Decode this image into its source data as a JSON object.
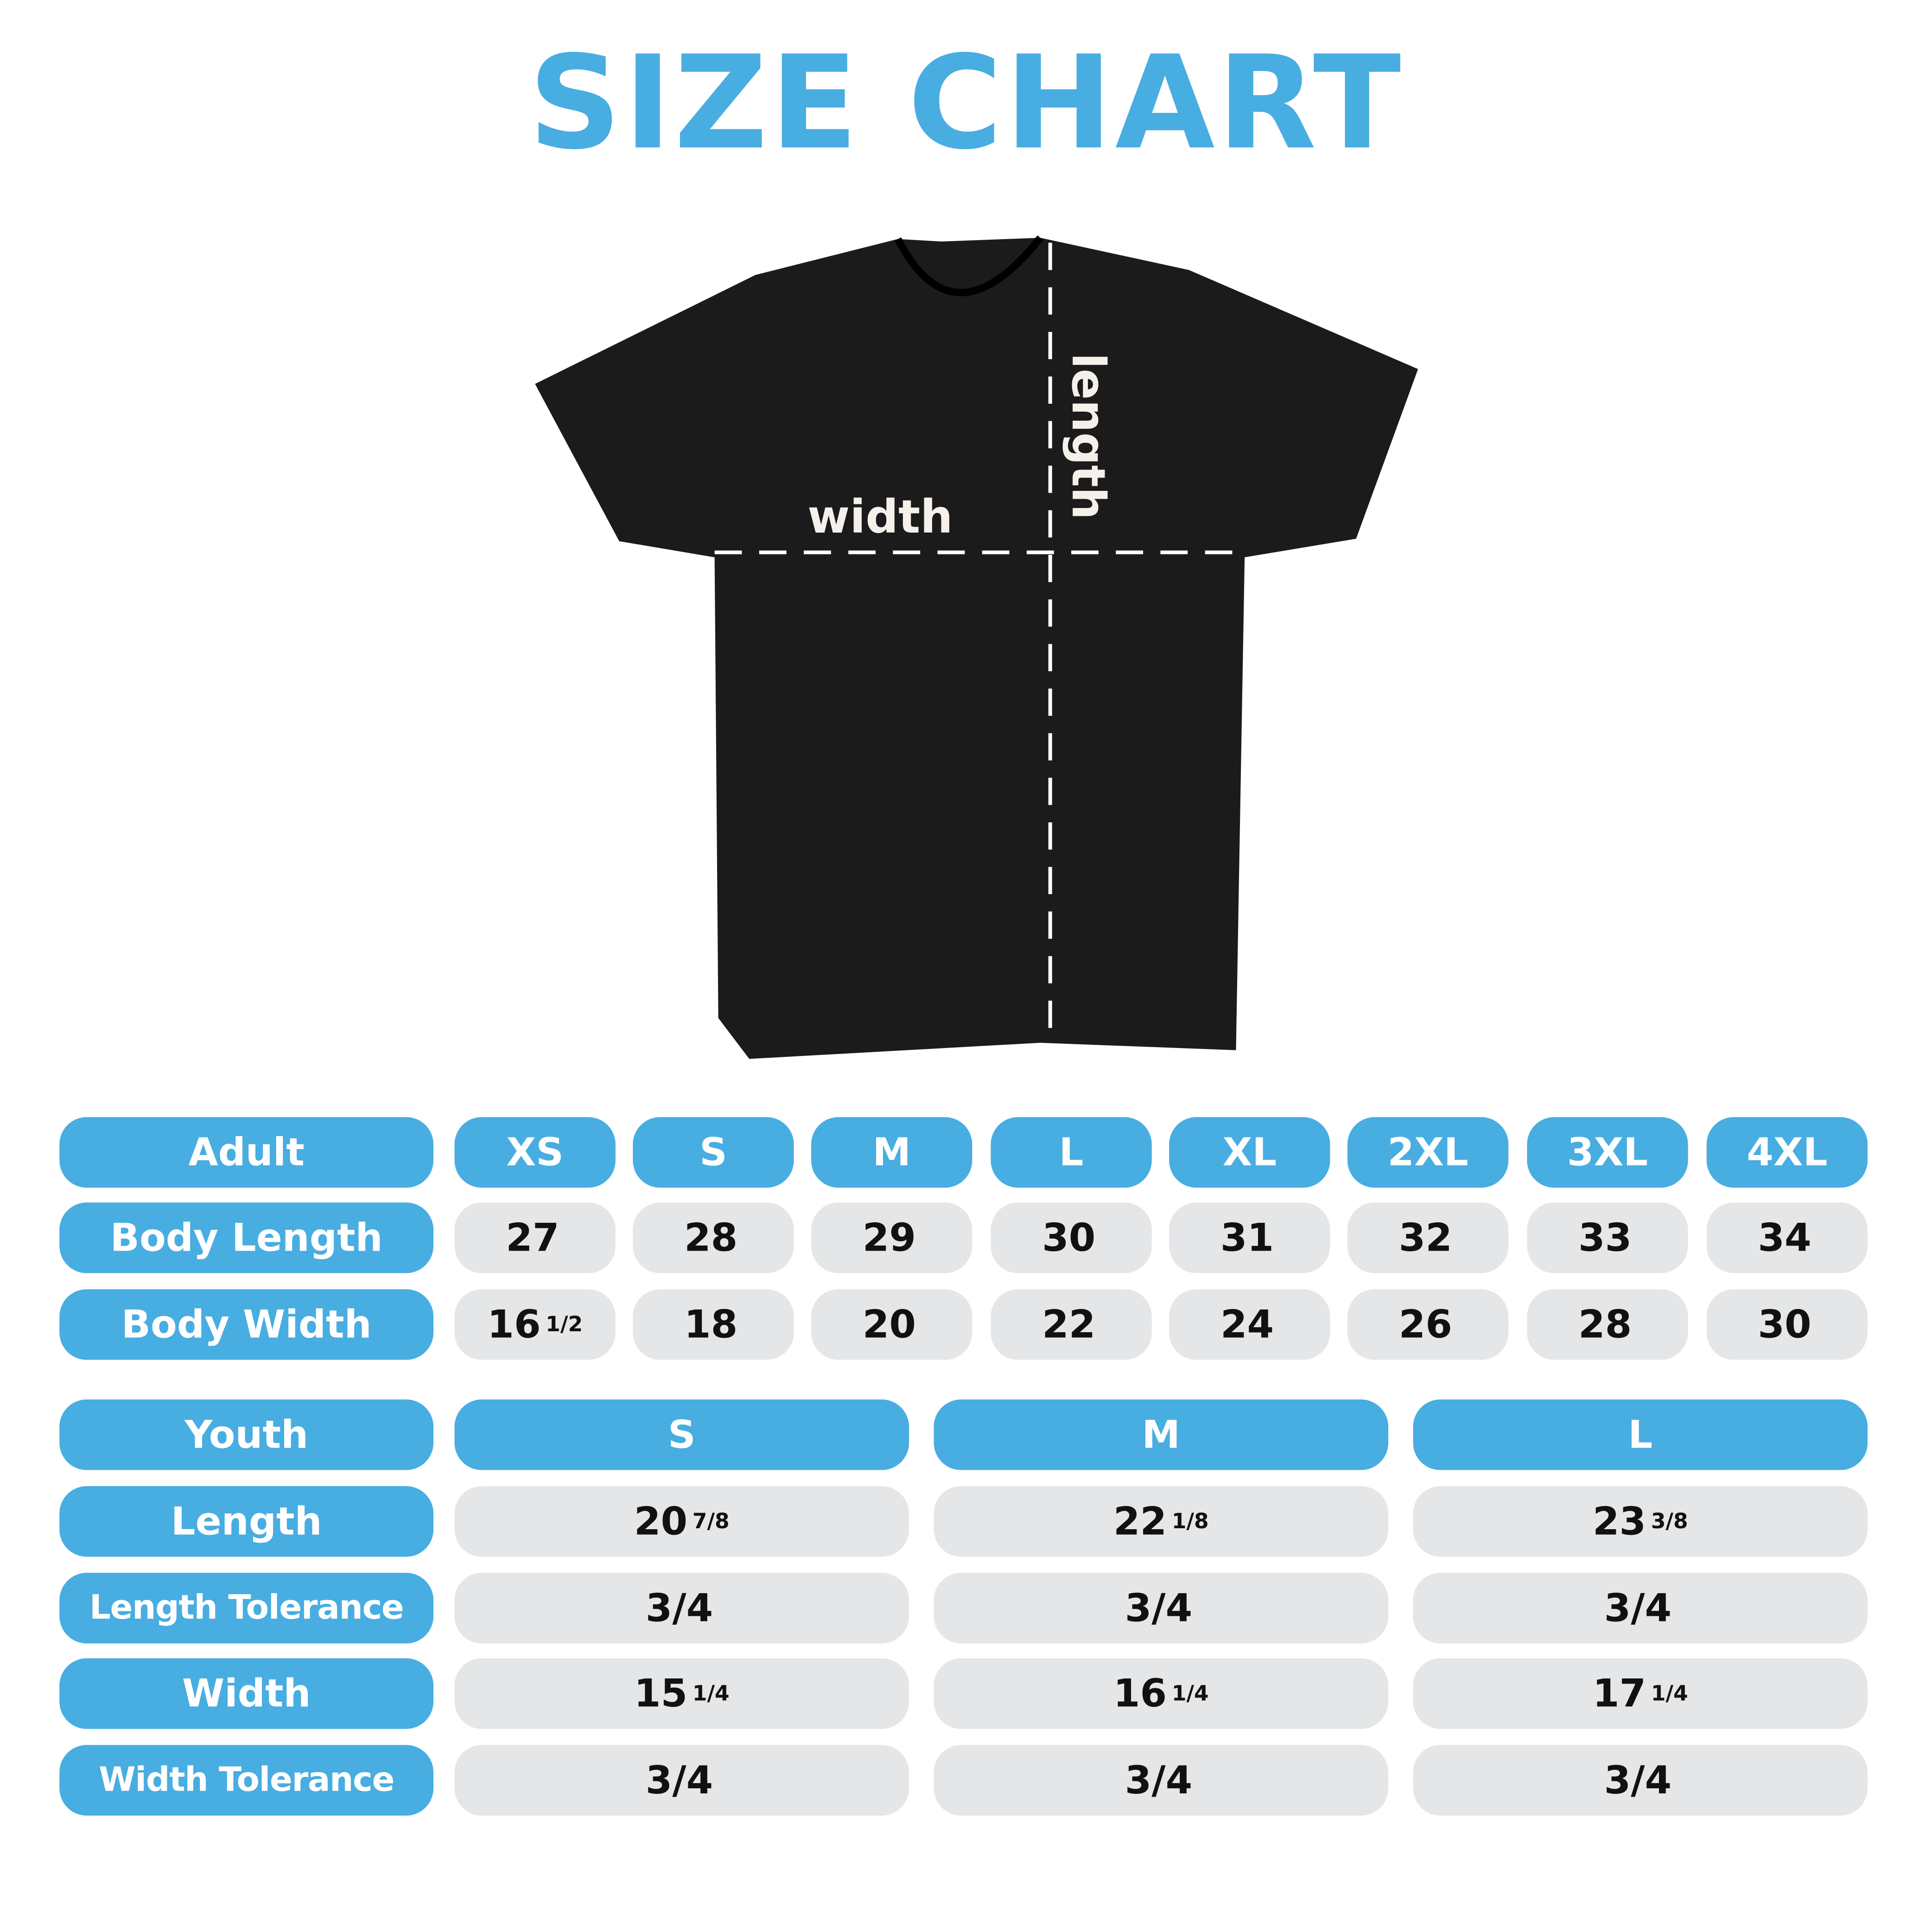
{
  "title": "SIZE CHART",
  "diagram": {
    "width_label": "width",
    "length_label": "length",
    "shirt_color": "#1a1a1a"
  },
  "colors": {
    "accent": "#48ade1",
    "cell": "#e4e6e8",
    "text": "#111111"
  },
  "adult": {
    "header": "Adult",
    "sizes": [
      "XS",
      "S",
      "M",
      "L",
      "XL",
      "2XL",
      "3XL",
      "4XL"
    ],
    "rows": [
      {
        "label": "Body Length",
        "values": [
          {
            "whole": "27",
            "frac": ""
          },
          {
            "whole": "28",
            "frac": ""
          },
          {
            "whole": "29",
            "frac": ""
          },
          {
            "whole": "30",
            "frac": ""
          },
          {
            "whole": "31",
            "frac": ""
          },
          {
            "whole": "32",
            "frac": ""
          },
          {
            "whole": "33",
            "frac": ""
          },
          {
            "whole": "34",
            "frac": ""
          }
        ]
      },
      {
        "label": "Body Width",
        "values": [
          {
            "whole": "16",
            "frac": "1/2"
          },
          {
            "whole": "18",
            "frac": ""
          },
          {
            "whole": "20",
            "frac": ""
          },
          {
            "whole": "22",
            "frac": ""
          },
          {
            "whole": "24",
            "frac": ""
          },
          {
            "whole": "26",
            "frac": ""
          },
          {
            "whole": "28",
            "frac": ""
          },
          {
            "whole": "30",
            "frac": ""
          }
        ]
      }
    ]
  },
  "youth": {
    "header": "Youth",
    "sizes": [
      "S",
      "M",
      "L"
    ],
    "rows": [
      {
        "label": "Length",
        "values": [
          {
            "whole": "20",
            "frac": "7/8"
          },
          {
            "whole": "22",
            "frac": "1/8"
          },
          {
            "whole": "23",
            "frac": "3/8"
          }
        ]
      },
      {
        "label": "Length Tolerance",
        "values": [
          {
            "whole": "3/4",
            "frac": ""
          },
          {
            "whole": "3/4",
            "frac": ""
          },
          {
            "whole": "3/4",
            "frac": ""
          }
        ]
      },
      {
        "label": "Width",
        "values": [
          {
            "whole": "15",
            "frac": "1/4"
          },
          {
            "whole": "16",
            "frac": "1/4"
          },
          {
            "whole": "17",
            "frac": "1/4"
          }
        ]
      },
      {
        "label": "Width Tolerance",
        "values": [
          {
            "whole": "3/4",
            "frac": ""
          },
          {
            "whole": "3/4",
            "frac": ""
          },
          {
            "whole": "3/4",
            "frac": ""
          }
        ]
      }
    ]
  }
}
